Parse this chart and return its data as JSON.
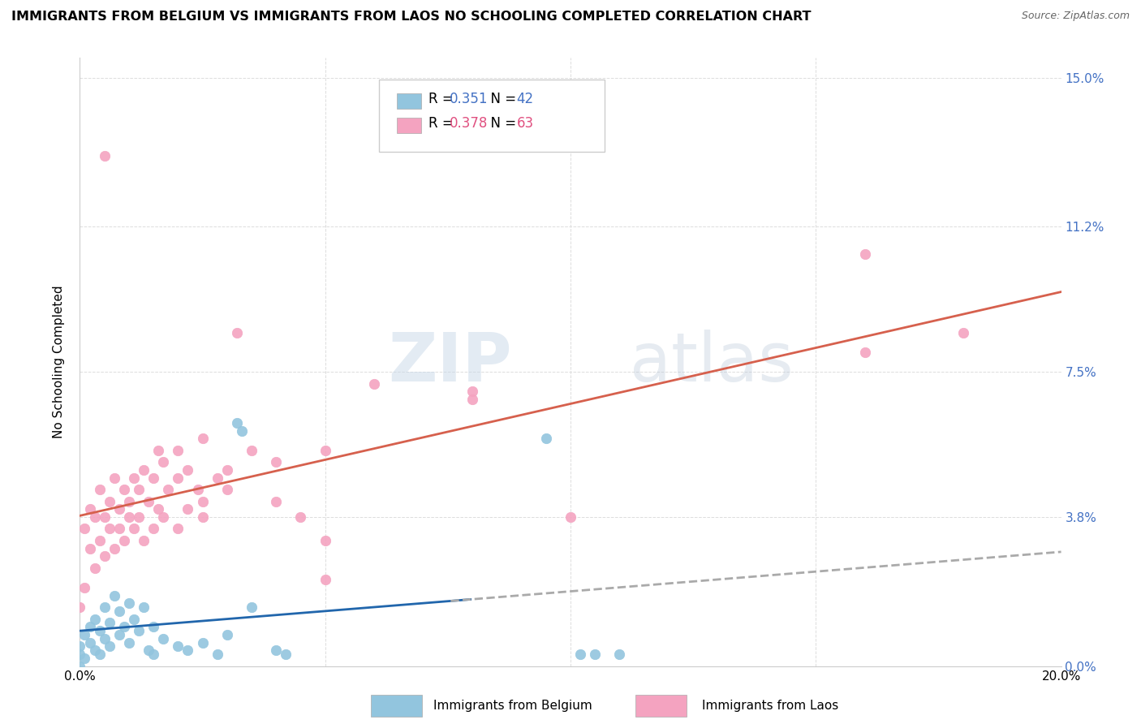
{
  "title": "IMMIGRANTS FROM BELGIUM VS IMMIGRANTS FROM LAOS NO SCHOOLING COMPLETED CORRELATION CHART",
  "source": "Source: ZipAtlas.com",
  "ylabel": "No Schooling Completed",
  "ytick_values": [
    0.0,
    3.8,
    7.5,
    11.2,
    15.0
  ],
  "xtick_values": [
    0.0,
    5.0,
    10.0,
    15.0,
    20.0
  ],
  "xlim": [
    0.0,
    20.0
  ],
  "ylim": [
    0.0,
    15.5
  ],
  "belgium_color": "#92c5de",
  "laos_color": "#f4a3c0",
  "belgium_trend_solid_color": "#2166ac",
  "belgium_trend_dash_color": "#aaaaaa",
  "laos_trend_color": "#d6604d",
  "belgium_R": 0.351,
  "belgium_N": 42,
  "laos_R": 0.378,
  "laos_N": 63,
  "watermark_zip": "ZIP",
  "watermark_atlas": "atlas",
  "background_color": "#ffffff",
  "legend_R_color": "#2166ac",
  "legend_N_color": "#2166ac",
  "belgium_points": [
    [
      0.0,
      0.0
    ],
    [
      0.0,
      0.5
    ],
    [
      0.0,
      0.3
    ],
    [
      0.1,
      0.8
    ],
    [
      0.1,
      0.2
    ],
    [
      0.2,
      1.0
    ],
    [
      0.2,
      0.6
    ],
    [
      0.3,
      1.2
    ],
    [
      0.3,
      0.4
    ],
    [
      0.4,
      0.9
    ],
    [
      0.4,
      0.3
    ],
    [
      0.5,
      1.5
    ],
    [
      0.5,
      0.7
    ],
    [
      0.6,
      1.1
    ],
    [
      0.6,
      0.5
    ],
    [
      0.7,
      1.8
    ],
    [
      0.8,
      0.8
    ],
    [
      0.8,
      1.4
    ],
    [
      0.9,
      1.0
    ],
    [
      1.0,
      1.6
    ],
    [
      1.0,
      0.6
    ],
    [
      1.1,
      1.2
    ],
    [
      1.2,
      0.9
    ],
    [
      1.3,
      1.5
    ],
    [
      1.4,
      0.4
    ],
    [
      1.5,
      1.0
    ],
    [
      1.5,
      0.3
    ],
    [
      1.7,
      0.7
    ],
    [
      2.0,
      0.5
    ],
    [
      2.2,
      0.4
    ],
    [
      2.5,
      0.6
    ],
    [
      2.8,
      0.3
    ],
    [
      3.0,
      0.8
    ],
    [
      3.2,
      6.2
    ],
    [
      3.3,
      6.0
    ],
    [
      3.5,
      1.5
    ],
    [
      4.0,
      0.4
    ],
    [
      4.2,
      0.3
    ],
    [
      9.5,
      5.8
    ],
    [
      10.2,
      0.3
    ],
    [
      10.5,
      0.3
    ],
    [
      11.0,
      0.3
    ]
  ],
  "laos_points": [
    [
      0.0,
      1.5
    ],
    [
      0.1,
      3.5
    ],
    [
      0.1,
      2.0
    ],
    [
      0.2,
      4.0
    ],
    [
      0.2,
      3.0
    ],
    [
      0.3,
      2.5
    ],
    [
      0.3,
      3.8
    ],
    [
      0.4,
      4.5
    ],
    [
      0.4,
      3.2
    ],
    [
      0.5,
      3.8
    ],
    [
      0.5,
      2.8
    ],
    [
      0.6,
      3.5
    ],
    [
      0.6,
      4.2
    ],
    [
      0.7,
      3.0
    ],
    [
      0.7,
      4.8
    ],
    [
      0.8,
      3.5
    ],
    [
      0.8,
      4.0
    ],
    [
      0.9,
      3.2
    ],
    [
      0.9,
      4.5
    ],
    [
      1.0,
      3.8
    ],
    [
      1.0,
      4.2
    ],
    [
      1.1,
      3.5
    ],
    [
      1.1,
      4.8
    ],
    [
      1.2,
      3.8
    ],
    [
      1.2,
      4.5
    ],
    [
      1.3,
      3.2
    ],
    [
      1.3,
      5.0
    ],
    [
      1.4,
      4.2
    ],
    [
      1.5,
      3.5
    ],
    [
      1.5,
      4.8
    ],
    [
      1.6,
      4.0
    ],
    [
      1.6,
      5.5
    ],
    [
      1.7,
      3.8
    ],
    [
      1.7,
      5.2
    ],
    [
      1.8,
      4.5
    ],
    [
      2.0,
      3.5
    ],
    [
      2.0,
      4.8
    ],
    [
      2.0,
      5.5
    ],
    [
      2.2,
      4.0
    ],
    [
      2.2,
      5.0
    ],
    [
      2.4,
      4.5
    ],
    [
      2.5,
      3.8
    ],
    [
      2.5,
      5.8
    ],
    [
      2.5,
      4.2
    ],
    [
      2.8,
      4.8
    ],
    [
      3.0,
      5.0
    ],
    [
      3.0,
      4.5
    ],
    [
      3.2,
      8.5
    ],
    [
      3.5,
      5.5
    ],
    [
      4.0,
      4.2
    ],
    [
      4.0,
      5.2
    ],
    [
      4.5,
      3.8
    ],
    [
      5.0,
      3.2
    ],
    [
      5.0,
      2.2
    ],
    [
      5.0,
      5.5
    ],
    [
      6.0,
      7.2
    ],
    [
      8.0,
      7.0
    ],
    [
      8.0,
      6.8
    ],
    [
      10.0,
      3.8
    ],
    [
      16.0,
      10.5
    ],
    [
      16.0,
      8.0
    ],
    [
      18.0,
      8.5
    ],
    [
      0.5,
      13.0
    ]
  ]
}
